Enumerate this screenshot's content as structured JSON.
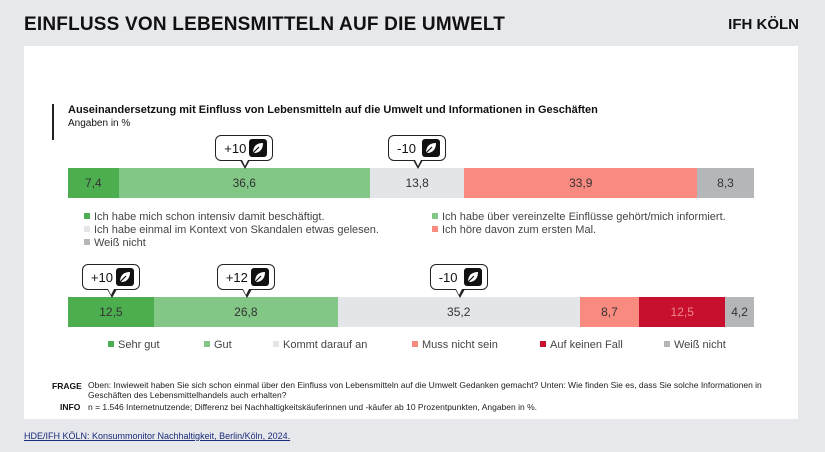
{
  "header": {
    "title": "EINFLUSS VON LEBENSMITTELN AUF DIE UMWELT",
    "brand": "IFH KÖLN"
  },
  "chart_data": [
    {
      "type": "bar",
      "stacked": true,
      "orientation": "horizontal",
      "title": "Auseinandersetzung mit Einfluss von Lebensmitteln auf die Umwelt und Informationen in Geschäften",
      "subtitle": "Angaben in %",
      "series": [
        {
          "name": "Ich habe mich schon intensiv damit beschäftigt.",
          "value": 7.4,
          "label": "7,4",
          "color": "#4cae4f"
        },
        {
          "name": "Ich habe über vereinzelte Einflüsse gehört/mich informiert.",
          "value": 36.6,
          "label": "36,6",
          "color": "#82c785"
        },
        {
          "name": "Ich habe einmal im Kontext von Skandalen etwas gelesen.",
          "value": 13.8,
          "label": "13,8",
          "color": "#e3e5e8"
        },
        {
          "name": "Ich höre davon zum ersten Mal.",
          "value": 33.9,
          "label": "33,9",
          "color": "#f88a80"
        },
        {
          "name": "Weiß nicht",
          "value": 8.3,
          "label": "8,3",
          "color": "#b4b6b9"
        }
      ],
      "callouts": [
        {
          "text": "+10",
          "at_series": 1
        },
        {
          "text": "-10",
          "at_series": 2
        }
      ]
    },
    {
      "type": "bar",
      "stacked": true,
      "orientation": "horizontal",
      "series": [
        {
          "name": "Sehr gut",
          "value": 12.5,
          "label": "12,5",
          "color": "#4cae4f"
        },
        {
          "name": "Gut",
          "value": 26.8,
          "label": "26,8",
          "color": "#82c785"
        },
        {
          "name": "Kommt darauf an",
          "value": 35.2,
          "label": "35,2",
          "color": "#e3e5e8"
        },
        {
          "name": "Muss nicht sein",
          "value": 8.7,
          "label": "8,7",
          "color": "#f88a80"
        },
        {
          "name": "Auf keinen Fall",
          "value": 12.5,
          "label": "12,5",
          "color": "#c8102e"
        },
        {
          "name": "Weiß nicht",
          "value": 4.2,
          "label": "4,2",
          "color": "#b4b6b9"
        }
      ],
      "callouts": [
        {
          "text": "+10",
          "at_series": 0
        },
        {
          "text": "+12",
          "at_series": 1
        },
        {
          "text": "-10",
          "at_series": 2
        }
      ]
    }
  ],
  "icons": {
    "callout_icon": "leaf-icon"
  },
  "notes": {
    "frage_label": "FRAGE",
    "frage_text": "Oben: Inwieweit haben Sie sich schon einmal über den Einfluss von Lebensmitteln auf die Umwelt Gedanken gemacht? Unten: Wie finden Sie es, dass Sie solche Informationen in Geschäften des Lebensmittelhandels auch erhalten?",
    "info_label": "INFO",
    "info_text": "n = 1.546 Internetnutzende; Differenz bei Nachhaltigkeitskäuferinnen und -käufer ab 10 Prozentpunkten, Angaben in %."
  },
  "source": "HDE/IFH KÖLN: Konsummonitor Nachhaltigkeit, Berlin/Köln, 2024."
}
